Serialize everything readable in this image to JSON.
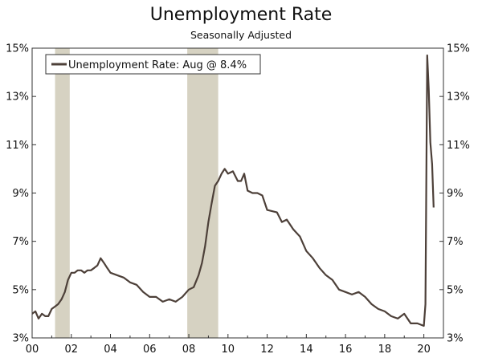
{
  "title": "Unemployment Rate",
  "subtitle": "Seasonally Adjusted",
  "chart_data": {
    "type": "line",
    "title": "Unemployment Rate",
    "subtitle": "Seasonally Adjusted",
    "xlabel": "",
    "ylabel": "",
    "xlim": [
      2000.0,
      2021.0
    ],
    "ylim": [
      3,
      15
    ],
    "x_ticks": [
      2000,
      2002,
      2004,
      2006,
      2008,
      2010,
      2012,
      2014,
      2016,
      2018,
      2020
    ],
    "x_tick_labels": [
      "00",
      "02",
      "04",
      "06",
      "08",
      "10",
      "12",
      "14",
      "16",
      "18",
      "20"
    ],
    "y_ticks": [
      3,
      5,
      7,
      9,
      11,
      13,
      15
    ],
    "y_tick_labels": [
      "3%",
      "5%",
      "7%",
      "9%",
      "11%",
      "13%",
      "15%"
    ],
    "y_axis_sides": [
      "left",
      "right"
    ],
    "grid": false,
    "legend": {
      "position": "top-left",
      "entries": [
        "Unemployment Rate: Aug @ 8.4%"
      ]
    },
    "recession_shading": [
      [
        2001.17,
        2001.92
      ],
      [
        2007.92,
        2009.5
      ]
    ],
    "colors": {
      "line": "#4d4039",
      "recession": "#d6d2c2",
      "axis": "#333333"
    },
    "series": [
      {
        "name": "Unemployment Rate: Aug @ 8.4%",
        "points": [
          [
            2000.0,
            4.0
          ],
          [
            2000.17,
            4.1
          ],
          [
            2000.33,
            3.8
          ],
          [
            2000.5,
            4.0
          ],
          [
            2000.67,
            3.9
          ],
          [
            2000.83,
            3.9
          ],
          [
            2001.0,
            4.2
          ],
          [
            2001.17,
            4.3
          ],
          [
            2001.33,
            4.4
          ],
          [
            2001.5,
            4.6
          ],
          [
            2001.67,
            4.9
          ],
          [
            2001.83,
            5.4
          ],
          [
            2002.0,
            5.7
          ],
          [
            2002.17,
            5.7
          ],
          [
            2002.33,
            5.8
          ],
          [
            2002.5,
            5.8
          ],
          [
            2002.67,
            5.7
          ],
          [
            2002.83,
            5.8
          ],
          [
            2003.0,
            5.8
          ],
          [
            2003.17,
            5.9
          ],
          [
            2003.33,
            6.0
          ],
          [
            2003.5,
            6.3
          ],
          [
            2003.67,
            6.1
          ],
          [
            2003.83,
            5.9
          ],
          [
            2004.0,
            5.7
          ],
          [
            2004.33,
            5.6
          ],
          [
            2004.67,
            5.5
          ],
          [
            2005.0,
            5.3
          ],
          [
            2005.33,
            5.2
          ],
          [
            2005.67,
            4.9
          ],
          [
            2006.0,
            4.7
          ],
          [
            2006.33,
            4.7
          ],
          [
            2006.67,
            4.5
          ],
          [
            2007.0,
            4.6
          ],
          [
            2007.33,
            4.5
          ],
          [
            2007.67,
            4.7
          ],
          [
            2008.0,
            5.0
          ],
          [
            2008.25,
            5.1
          ],
          [
            2008.5,
            5.6
          ],
          [
            2008.67,
            6.1
          ],
          [
            2008.83,
            6.8
          ],
          [
            2009.0,
            7.8
          ],
          [
            2009.17,
            8.6
          ],
          [
            2009.33,
            9.3
          ],
          [
            2009.5,
            9.5
          ],
          [
            2009.67,
            9.8
          ],
          [
            2009.83,
            10.0
          ],
          [
            2010.0,
            9.8
          ],
          [
            2010.25,
            9.9
          ],
          [
            2010.5,
            9.5
          ],
          [
            2010.67,
            9.5
          ],
          [
            2010.83,
            9.8
          ],
          [
            2011.0,
            9.1
          ],
          [
            2011.25,
            9.0
          ],
          [
            2011.5,
            9.0
          ],
          [
            2011.75,
            8.9
          ],
          [
            2012.0,
            8.3
          ],
          [
            2012.5,
            8.2
          ],
          [
            2012.75,
            7.8
          ],
          [
            2013.0,
            7.9
          ],
          [
            2013.33,
            7.5
          ],
          [
            2013.67,
            7.2
          ],
          [
            2014.0,
            6.6
          ],
          [
            2014.33,
            6.3
          ],
          [
            2014.67,
            5.9
          ],
          [
            2015.0,
            5.6
          ],
          [
            2015.33,
            5.4
          ],
          [
            2015.67,
            5.0
          ],
          [
            2016.0,
            4.9
          ],
          [
            2016.33,
            4.8
          ],
          [
            2016.67,
            4.9
          ],
          [
            2017.0,
            4.7
          ],
          [
            2017.33,
            4.4
          ],
          [
            2017.67,
            4.2
          ],
          [
            2018.0,
            4.1
          ],
          [
            2018.33,
            3.9
          ],
          [
            2018.67,
            3.8
          ],
          [
            2019.0,
            4.0
          ],
          [
            2019.33,
            3.6
          ],
          [
            2019.67,
            3.6
          ],
          [
            2020.0,
            3.5
          ],
          [
            2020.08,
            4.4
          ],
          [
            2020.17,
            14.7
          ],
          [
            2020.25,
            13.3
          ],
          [
            2020.33,
            11.1
          ],
          [
            2020.42,
            10.2
          ],
          [
            2020.5,
            8.4
          ]
        ]
      }
    ]
  }
}
